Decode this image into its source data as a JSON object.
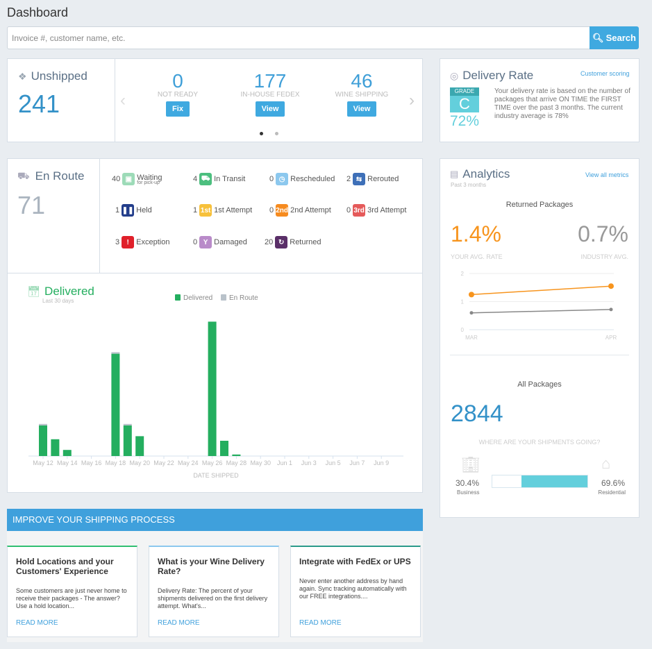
{
  "page": {
    "title": "Dashboard"
  },
  "search": {
    "placeholder": "Invoice #, customer name, etc.",
    "button": "Search"
  },
  "unshipped": {
    "title": "Unshipped",
    "count": "241",
    "stats": [
      {
        "value": "0",
        "label": "NOT READY",
        "button": "Fix"
      },
      {
        "value": "177",
        "label": "IN-HOUSE FEDEX",
        "button": "View"
      },
      {
        "value": "46",
        "label": "WINE SHIPPING",
        "button": "View"
      }
    ],
    "carousel_pages": 2,
    "active_page": 1
  },
  "delivery_rate": {
    "title": "Delivery Rate",
    "link": "Customer scoring",
    "grade_label": "GRADE",
    "grade": "C",
    "percent": "72%",
    "description": "Your delivery rate is based on the number of packages that arrive ON TIME the FIRST TIME over the past 3 months. The current industry average is 78%"
  },
  "en_route": {
    "title": "En Route",
    "count": "71",
    "statuses": [
      {
        "count": "40",
        "label": "Waiting",
        "sub": "for pick-up",
        "icon": "box-icon",
        "color": "#9ddbb8"
      },
      {
        "count": "4",
        "label": "In Transit",
        "icon": "truck-icon",
        "color": "#4cbf7f"
      },
      {
        "count": "0",
        "label": "Rescheduled",
        "icon": "clock-icon",
        "color": "#8cc8ee"
      },
      {
        "count": "2",
        "label": "Rerouted",
        "icon": "reroute-icon",
        "color": "#3e70b8"
      },
      {
        "count": "1",
        "label": "Held",
        "icon": "pause-icon",
        "color": "#233e8b"
      },
      {
        "count": "1",
        "label": "1st Attempt",
        "glyph": "1st",
        "icon": "first-attempt-icon",
        "color": "#f7c13b"
      },
      {
        "count": "0",
        "label": "2nd Attempt",
        "glyph": "2nd",
        "icon": "second-attempt-icon",
        "color": "#f68b1f"
      },
      {
        "count": "0",
        "label": "3rd Attempt",
        "glyph": "3rd",
        "icon": "third-attempt-icon",
        "color": "#e55a5a"
      },
      {
        "count": "3",
        "label": "Exception",
        "glyph": "!",
        "icon": "exclamation-icon",
        "color": "#e0202a"
      },
      {
        "count": "0",
        "label": "Damaged",
        "glyph": "Y",
        "icon": "broken-glass-icon",
        "color": "#b98bc9"
      },
      {
        "count": "20",
        "label": "Returned",
        "icon": "return-icon",
        "color": "#5a2f68"
      }
    ]
  },
  "delivered": {
    "title": "Delivered",
    "subtitle": "Last 30 days"
  },
  "chart_data": [
    {
      "type": "bar",
      "stacked": true,
      "xlabel": "DATE SHIPPED",
      "ylabel": "",
      "legend": "top",
      "categories": [
        "May 12",
        "May 13",
        "May 14",
        "May 15",
        "May 16",
        "May 17",
        "May 18",
        "May 19",
        "May 20",
        "May 21",
        "May 22",
        "May 23",
        "May 24",
        "May 25",
        "May 26",
        "May 27",
        "May 28",
        "May 29",
        "May 30",
        "May 31",
        "Jun 1",
        "Jun 2",
        "Jun 3",
        "Jun 4",
        "Jun 5",
        "Jun 6",
        "Jun 7",
        "Jun 8",
        "Jun 9"
      ],
      "tick_labels": [
        "May 12",
        "May 14",
        "May 16",
        "May 18",
        "May 20",
        "May 22",
        "May 24",
        "May 26",
        "May 28",
        "May 30",
        "Jun 1",
        "Jun 3",
        "Jun 5",
        "Jun 7",
        "Jun 9"
      ],
      "series": [
        {
          "name": "Delivered",
          "color": "#24ae5f",
          "values": [
            20,
            11,
            4,
            0,
            0,
            0,
            67,
            20,
            13,
            0,
            0,
            0,
            0,
            0,
            88,
            10,
            1,
            0,
            0,
            0,
            0,
            0,
            0,
            0,
            0,
            0,
            0,
            0,
            0
          ]
        },
        {
          "name": "En Route",
          "color": "#b9c2ca",
          "values": [
            1,
            0,
            0,
            0,
            0,
            0,
            1,
            1,
            0,
            0,
            0,
            0,
            0,
            0,
            0,
            0,
            0,
            0,
            0,
            0,
            0,
            0,
            0,
            0,
            0,
            0,
            0,
            0,
            0
          ]
        }
      ]
    },
    {
      "type": "line",
      "title": "Returned Packages",
      "categories": [
        "MAR",
        "APR"
      ],
      "ylim": [
        0,
        2
      ],
      "yticks": [
        "0",
        "1",
        "2"
      ],
      "series": [
        {
          "name": "YOUR AVG. RATE",
          "color": "#f7941d",
          "values": [
            1.25,
            1.55
          ]
        },
        {
          "name": "INDUSTRY AVG.",
          "color": "#888888",
          "values": [
            0.6,
            0.72
          ]
        }
      ]
    }
  ],
  "analytics": {
    "title": "Analytics",
    "subtitle": "Past 3 months",
    "link": "View all metrics",
    "chart_title": "Returned Packages",
    "your_rate": "1.4%",
    "your_label": "YOUR AVG. RATE",
    "industry_rate": "0.7%",
    "industry_label": "INDUSTRY AVG.",
    "all_title": "All Packages",
    "all_count": "2844",
    "where": "WHERE ARE YOUR SHIPMENTS GOING?",
    "business_pct": "30.4%",
    "business_label": "Business",
    "residential_pct": "69.6%",
    "residential_label": "Residential",
    "residential_share": 69.6,
    "bar_color": "#63cfdc"
  },
  "improve": {
    "title": "IMPROVE YOUR SHIPPING PROCESS",
    "cards": [
      {
        "title": "Hold Locations and your Customers' Experience",
        "text": "Some customers are just never home to receive their packages - The answer? Use a hold location...",
        "link": "READ MORE",
        "accent": "#2fbf71"
      },
      {
        "title": "What is your Wine Delivery Rate?",
        "text": "Delivery Rate: The percent of your shipments delivered on the first delivery attempt. What's...",
        "link": "READ MORE",
        "accent": "#8cc8ee"
      },
      {
        "title": "Integrate with FedEx or UPS",
        "text": "Never enter another address by hand again. Sync tracking automatically with our FREE integrations....",
        "link": "READ MORE",
        "accent": "#2a9a8a"
      }
    ]
  }
}
